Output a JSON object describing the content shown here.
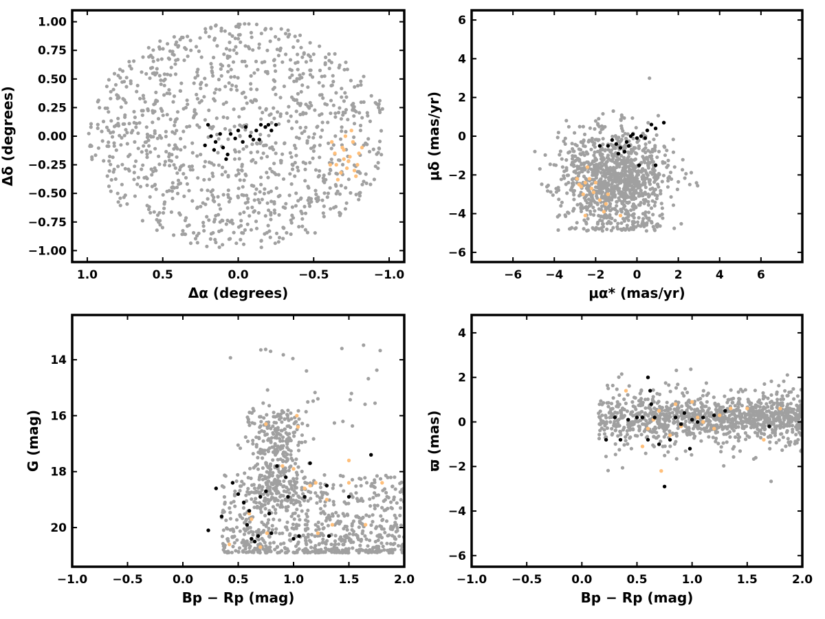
{
  "chart_data": [
    {
      "type": "scatter",
      "panel": "top-left",
      "xlabel": "Δα (degrees)",
      "ylabel": "Δδ (degrees)",
      "xlim": [
        1.1,
        -1.1
      ],
      "ylim": [
        -1.1,
        1.1
      ],
      "x_reversed": true,
      "xticks": [
        1.0,
        0.5,
        0.0,
        -0.5,
        -1.0
      ],
      "xtick_labels": [
        "1.0",
        "0.5",
        "0.0",
        "−0.5",
        "−1.0"
      ],
      "yticks": [
        -1.0,
        -0.75,
        -0.5,
        -0.25,
        0.0,
        0.25,
        0.5,
        0.75,
        1.0
      ],
      "ytick_labels": [
        "−1.00",
        "−0.75",
        "−0.50",
        "−0.25",
        "0.00",
        "0.25",
        "0.50",
        "0.75",
        "1.00"
      ],
      "grid": false,
      "series": [
        {
          "color": "#a0a0a0",
          "distribution": "uniform disk of radius 1.0 deg, ~1100 stars"
        },
        {
          "color": "#ffbf7a",
          "values": [
            [
              -0.62,
              -0.05
            ],
            [
              -0.65,
              -0.25
            ],
            [
              -0.7,
              -0.12
            ],
            [
              -0.72,
              -0.28
            ],
            [
              -0.74,
              -0.18
            ],
            [
              -0.76,
              -0.05
            ],
            [
              -0.78,
              -0.35
            ],
            [
              -0.8,
              -0.15
            ],
            [
              -0.68,
              -0.32
            ],
            [
              -0.75,
              0.05
            ],
            [
              -0.64,
              -0.15
            ],
            [
              -0.79,
              -0.25
            ],
            [
              -0.71,
              0.0
            ],
            [
              -0.66,
              -0.38
            ],
            [
              -0.73,
              -0.22
            ],
            [
              -0.77,
              -0.3
            ],
            [
              -0.69,
              -0.1
            ],
            [
              -0.61,
              -0.25
            ],
            [
              -0.82,
              -0.1
            ],
            [
              -0.7,
              -0.2
            ]
          ]
        },
        {
          "color": "#000000",
          "values": [
            [
              0.2,
              0.1
            ],
            [
              0.18,
              0.0
            ],
            [
              0.15,
              -0.05
            ],
            [
              0.1,
              -0.1
            ],
            [
              0.08,
              -0.2
            ],
            [
              0.05,
              0.02
            ],
            [
              0.0,
              0.05
            ],
            [
              -0.03,
              -0.05
            ],
            [
              -0.08,
              0.0
            ],
            [
              -0.12,
              0.05
            ],
            [
              -0.15,
              0.1
            ],
            [
              -0.18,
              0.08
            ],
            [
              -0.22,
              0.05
            ],
            [
              -0.25,
              0.1
            ],
            [
              -0.05,
              0.08
            ],
            [
              0.02,
              -0.02
            ],
            [
              -0.1,
              -0.03
            ],
            [
              0.12,
              0.02
            ],
            [
              0.22,
              -0.08
            ],
            [
              -0.2,
              0.1
            ],
            [
              0.16,
              -0.12
            ],
            [
              -0.14,
              -0.03
            ],
            [
              0.07,
              -0.16
            ]
          ]
        }
      ]
    },
    {
      "type": "scatter",
      "panel": "top-right",
      "xlabel": "μα* (mas/yr)",
      "ylabel": "μδ (mas/yr)",
      "xlim": [
        -8,
        8
      ],
      "ylim": [
        -6.5,
        6.5
      ],
      "xticks": [
        -6,
        -4,
        -2,
        0,
        2,
        4,
        6
      ],
      "xtick_labels": [
        "−6",
        "−4",
        "−2",
        "0",
        "2",
        "4",
        "6"
      ],
      "yticks": [
        -6,
        -4,
        -2,
        0,
        2,
        4,
        6
      ],
      "ytick_labels": [
        "−6",
        "−4",
        "−2",
        "0",
        "2",
        "4",
        "6"
      ],
      "grid": false,
      "series": [
        {
          "color": "#a0a0a0",
          "distribution": "broad cloud centred near (-1, -2.2) mas/yr, ~1100 stars"
        },
        {
          "color": "#ffbf7a",
          "values": [
            [
              -2.5,
              -2.4
            ],
            [
              -2.8,
              -2.5
            ],
            [
              -2.2,
              -2.7
            ],
            [
              -2.6,
              -3.0
            ],
            [
              -2.4,
              -1.6
            ],
            [
              -1.8,
              -3.3
            ],
            [
              -2.9,
              -2.2
            ],
            [
              -2.3,
              -2.2
            ],
            [
              -1.5,
              -3.5
            ],
            [
              -0.8,
              -4.1
            ],
            [
              -2.7,
              -2.6
            ],
            [
              -2.1,
              -2.9
            ],
            [
              -1.6,
              -3.9
            ],
            [
              -2.5,
              -4.1
            ],
            [
              -2.0,
              -2.4
            ],
            [
              -1.4,
              -3.0
            ]
          ]
        },
        {
          "color": "#000000",
          "values": [
            [
              -1.2,
              -0.2
            ],
            [
              -1.0,
              -0.4
            ],
            [
              -0.8,
              -0.6
            ],
            [
              -0.5,
              -0.3
            ],
            [
              -0.3,
              0.0
            ],
            [
              0.0,
              -0.1
            ],
            [
              0.2,
              0.0
            ],
            [
              0.5,
              0.3
            ],
            [
              0.7,
              0.6
            ],
            [
              0.9,
              0.4
            ],
            [
              1.3,
              0.7
            ],
            [
              -1.8,
              -0.5
            ],
            [
              -0.6,
              -0.8
            ],
            [
              -0.2,
              0.1
            ],
            [
              0.1,
              -1.5
            ],
            [
              0.9,
              -1.5
            ],
            [
              -1.4,
              -0.5
            ],
            [
              -0.9,
              -0.9
            ],
            [
              0.4,
              -0.1
            ],
            [
              -0.4,
              -0.5
            ]
          ]
        }
      ]
    },
    {
      "type": "scatter",
      "panel": "bottom-left",
      "xlabel": "Bp − Rp (mag)",
      "ylabel": "G (mag)",
      "xlim": [
        -1.0,
        2.0
      ],
      "ylim": [
        21.4,
        12.4
      ],
      "y_reversed": true,
      "xticks": [
        -1.0,
        -0.5,
        0.0,
        0.5,
        1.0,
        1.5,
        2.0
      ],
      "xtick_labels": [
        "−1.0",
        "−0.5",
        "0.0",
        "0.5",
        "1.0",
        "1.5",
        "2.0"
      ],
      "yticks": [
        14,
        16,
        18,
        20
      ],
      "ytick_labels": [
        "14",
        "16",
        "18",
        "20"
      ],
      "grid": false,
      "series": [
        {
          "color": "#a0a0a0",
          "distribution": "field sequence, ~1100 stars, G 15.6–20.9, Bp−Rp 0.1–2.0"
        },
        {
          "color": "#ffbf7a",
          "values": [
            [
              0.42,
              20.6
            ],
            [
              0.62,
              19.7
            ],
            [
              0.7,
              20.7
            ],
            [
              0.76,
              20.2
            ],
            [
              0.6,
              19.5
            ],
            [
              0.75,
              16.3
            ],
            [
              1.04,
              16.4
            ],
            [
              1.03,
              16.0
            ],
            [
              1.1,
              18.6
            ],
            [
              1.15,
              18.5
            ],
            [
              1.2,
              18.4
            ],
            [
              1.22,
              20.2
            ],
            [
              1.35,
              19.9
            ],
            [
              1.5,
              17.6
            ],
            [
              1.65,
              19.9
            ],
            [
              1.8,
              18.4
            ],
            [
              1.0,
              17.9
            ],
            [
              1.3,
              19.0
            ],
            [
              0.9,
              17.8
            ],
            [
              1.5,
              18.4
            ]
          ]
        },
        {
          "color": "#000000",
          "values": [
            [
              0.23,
              20.1
            ],
            [
              0.3,
              18.6
            ],
            [
              0.35,
              19.6
            ],
            [
              0.45,
              18.4
            ],
            [
              0.5,
              18.8
            ],
            [
              0.55,
              19.1
            ],
            [
              0.6,
              19.4
            ],
            [
              0.62,
              20.4
            ],
            [
              0.65,
              20.5
            ],
            [
              0.7,
              18.9
            ],
            [
              0.75,
              18.7
            ],
            [
              0.78,
              19.5
            ],
            [
              0.85,
              17.8
            ],
            [
              0.93,
              18.2
            ],
            [
              0.95,
              18.9
            ],
            [
              1.0,
              20.4
            ],
            [
              1.05,
              20.3
            ],
            [
              1.1,
              18.9
            ],
            [
              1.15,
              17.7
            ],
            [
              1.3,
              18.5
            ],
            [
              1.32,
              20.3
            ],
            [
              1.5,
              18.9
            ],
            [
              1.7,
              17.4
            ],
            [
              0.58,
              19.9
            ],
            [
              0.68,
              20.3
            ],
            [
              0.8,
              20.2
            ]
          ]
        }
      ]
    },
    {
      "type": "scatter",
      "panel": "bottom-right",
      "xlabel": "Bp − Rp (mag)",
      "ylabel": "ϖ (mas)",
      "xlim": [
        -1.0,
        2.0
      ],
      "ylim": [
        -6.5,
        4.8
      ],
      "xticks": [
        -1.0,
        -0.5,
        0.0,
        0.5,
        1.0,
        1.5,
        2.0
      ],
      "xtick_labels": [
        "−1.0",
        "−0.5",
        "0.0",
        "0.5",
        "1.0",
        "1.5",
        "2.0"
      ],
      "yticks": [
        -6,
        -4,
        -2,
        0,
        2,
        4
      ],
      "ytick_labels": [
        "−6",
        "−4",
        "−2",
        "0",
        "2",
        "4"
      ],
      "grid": false,
      "series": [
        {
          "color": "#a0a0a0",
          "distribution": "band around ϖ≈0.2 mas, Bp−Rp 0.1–2.0, ~1100 stars"
        },
        {
          "color": "#ffbf7a",
          "values": [
            [
              0.4,
              1.4
            ],
            [
              0.55,
              -1.1
            ],
            [
              0.6,
              -0.3
            ],
            [
              0.65,
              0.1
            ],
            [
              0.7,
              0.5
            ],
            [
              0.72,
              -2.2
            ],
            [
              0.8,
              -0.6
            ],
            [
              0.85,
              0.8
            ],
            [
              0.9,
              -0.2
            ],
            [
              1.0,
              0.9
            ],
            [
              1.05,
              0.2
            ],
            [
              1.1,
              0.0
            ],
            [
              1.2,
              -0.3
            ],
            [
              1.35,
              0.6
            ],
            [
              1.5,
              0.6
            ],
            [
              1.65,
              -0.8
            ],
            [
              1.8,
              0.6
            ],
            [
              1.25,
              0.3
            ]
          ]
        },
        {
          "color": "#000000",
          "values": [
            [
              0.22,
              -0.8
            ],
            [
              0.3,
              0.2
            ],
            [
              0.35,
              -0.8
            ],
            [
              0.42,
              0.1
            ],
            [
              0.5,
              0.2
            ],
            [
              0.55,
              0.2
            ],
            [
              0.6,
              2.0
            ],
            [
              0.62,
              1.4
            ],
            [
              0.63,
              0.8
            ],
            [
              0.66,
              0.2
            ],
            [
              0.7,
              -1.0
            ],
            [
              0.75,
              -2.9
            ],
            [
              0.8,
              -0.8
            ],
            [
              0.85,
              0.2
            ],
            [
              0.9,
              -0.1
            ],
            [
              0.93,
              0.4
            ],
            [
              0.98,
              -1.2
            ],
            [
              1.0,
              0.1
            ],
            [
              1.05,
              0.0
            ],
            [
              1.1,
              0.2
            ],
            [
              1.2,
              0.3
            ],
            [
              1.3,
              0.5
            ],
            [
              1.7,
              -0.2
            ],
            [
              0.6,
              -0.8
            ]
          ]
        }
      ]
    }
  ]
}
